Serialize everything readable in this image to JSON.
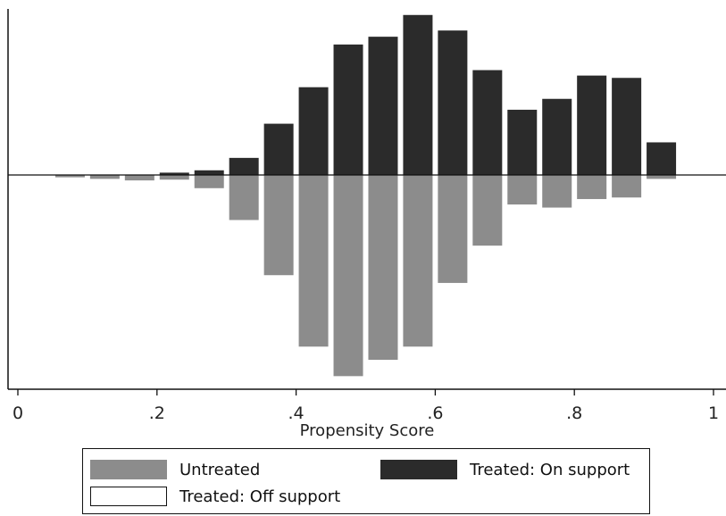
{
  "chart_data": {
    "type": "bar",
    "xlabel": "Propensity Score",
    "ylabel": "",
    "title": "",
    "xlim": [
      0,
      1
    ],
    "x_ticks": [
      "0",
      ".2",
      ".4",
      ".6",
      ".8",
      "1"
    ],
    "x_tick_values": [
      0,
      0.2,
      0.4,
      0.6,
      0.8,
      1
    ],
    "bin_centers": [
      0.075,
      0.125,
      0.175,
      0.225,
      0.275,
      0.325,
      0.375,
      0.425,
      0.475,
      0.525,
      0.575,
      0.625,
      0.675,
      0.725,
      0.775,
      0.825,
      0.875,
      0.925
    ],
    "series": [
      {
        "name": "Untreated",
        "color": "#8c8c8c",
        "values": [
          0.3,
          0.5,
          0.7,
          0.6,
          1.7,
          5.8,
          12.9,
          22.1,
          25.9,
          23.8,
          22.1,
          13.9,
          9.1,
          3.8,
          4.2,
          3.1,
          2.9,
          0.5
        ]
      },
      {
        "name": "Treated: On support",
        "color": "#2b2b2b",
        "values": [
          0,
          0,
          0,
          0.3,
          0.6,
          2.2,
          6.6,
          11.3,
          16.8,
          17.8,
          20.6,
          18.6,
          13.5,
          8.4,
          9.8,
          12.8,
          12.5,
          4.2
        ]
      },
      {
        "name": "Treated: Off support",
        "color": "#ffffff",
        "values": []
      }
    ],
    "baseline": 0,
    "grid": false,
    "legend_position": "bottom"
  },
  "legend": {
    "untreated": "Untreated",
    "treated_on": "Treated: On support",
    "treated_off": "Treated: Off support"
  }
}
